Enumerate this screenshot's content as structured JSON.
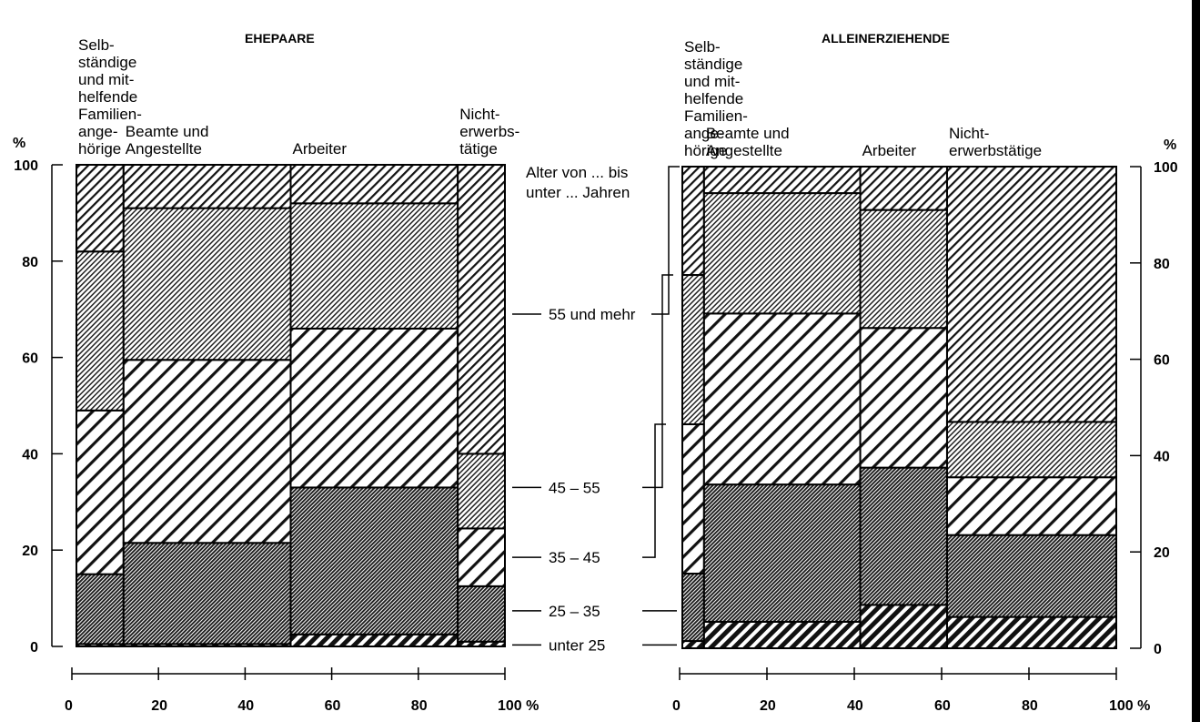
{
  "chart_data": [
    {
      "type": "mosaic",
      "title": "EHEPAARE",
      "ylabel": "%",
      "xunit": "%",
      "ylim": [
        0,
        100
      ],
      "xlim": [
        0,
        100
      ],
      "y_ticks": [
        "0",
        "20",
        "40",
        "60",
        "80",
        "100"
      ],
      "x_ticks": [
        "0",
        "20",
        "40",
        "60",
        "80",
        "100 %"
      ],
      "columns": [
        {
          "label": "Selb-\nständige\nund mit-\nhelfende\nFamilien-\nange-\nhörige",
          "x_start": 0,
          "x_end": 11
        },
        {
          "label": "Beamte und\nAngestellte",
          "x_start": 11,
          "x_end": 50
        },
        {
          "label": "Arbeiter",
          "x_start": 50,
          "x_end": 89
        },
        {
          "label": "Nicht-\nerwerbs-\ntätige",
          "x_start": 89,
          "x_end": 100
        }
      ],
      "age_groups": [
        "unter 25",
        "25 – 35",
        "35 – 45",
        "45 – 55",
        "55 und mehr"
      ],
      "cumulative_tops": [
        [
          0.5,
          15,
          49,
          82,
          100
        ],
        [
          0.5,
          21.5,
          59.5,
          91,
          100
        ],
        [
          2.5,
          33,
          66,
          92,
          100
        ],
        [
          1,
          12.5,
          24.5,
          40,
          100
        ]
      ]
    },
    {
      "type": "mosaic",
      "title": "ALLEINERZIEHENDE",
      "ylabel": "%",
      "xunit": "%",
      "ylim": [
        0,
        100
      ],
      "xlim": [
        0,
        100
      ],
      "y_ticks": [
        "0",
        "20",
        "40",
        "60",
        "80",
        "100"
      ],
      "x_ticks": [
        "0",
        "20",
        "40",
        "60",
        "80",
        "100 %"
      ],
      "columns": [
        {
          "label": "Selb-\nständige\nund mit-\nhelfende\nFamilien-\nange-\nhörige",
          "x_start": 0,
          "x_end": 5
        },
        {
          "label": "Beamte und\nAngestellte",
          "x_start": 5,
          "x_end": 41
        },
        {
          "label": "Arbeiter",
          "x_start": 41,
          "x_end": 61
        },
        {
          "label": "Nicht-\nerwerbstätige",
          "x_start": 61,
          "x_end": 100
        }
      ],
      "age_groups": [
        "unter 25",
        "25 – 35",
        "35 – 45",
        "45 – 55",
        "55 und mehr"
      ],
      "cumulative_tops": [
        [
          1.5,
          15.5,
          46.5,
          77.5,
          100
        ],
        [
          5.5,
          34,
          69.5,
          94.5,
          100
        ],
        [
          9,
          37.5,
          66.5,
          91,
          100
        ],
        [
          6.5,
          23.5,
          35.5,
          47,
          100
        ]
      ]
    }
  ],
  "age_legend": {
    "heading": "Alter von ... bis\nunter ... Jahren",
    "labels": [
      "unter 25",
      "25 – 35",
      "35 – 45",
      "45 – 55",
      "55 und mehr"
    ]
  }
}
